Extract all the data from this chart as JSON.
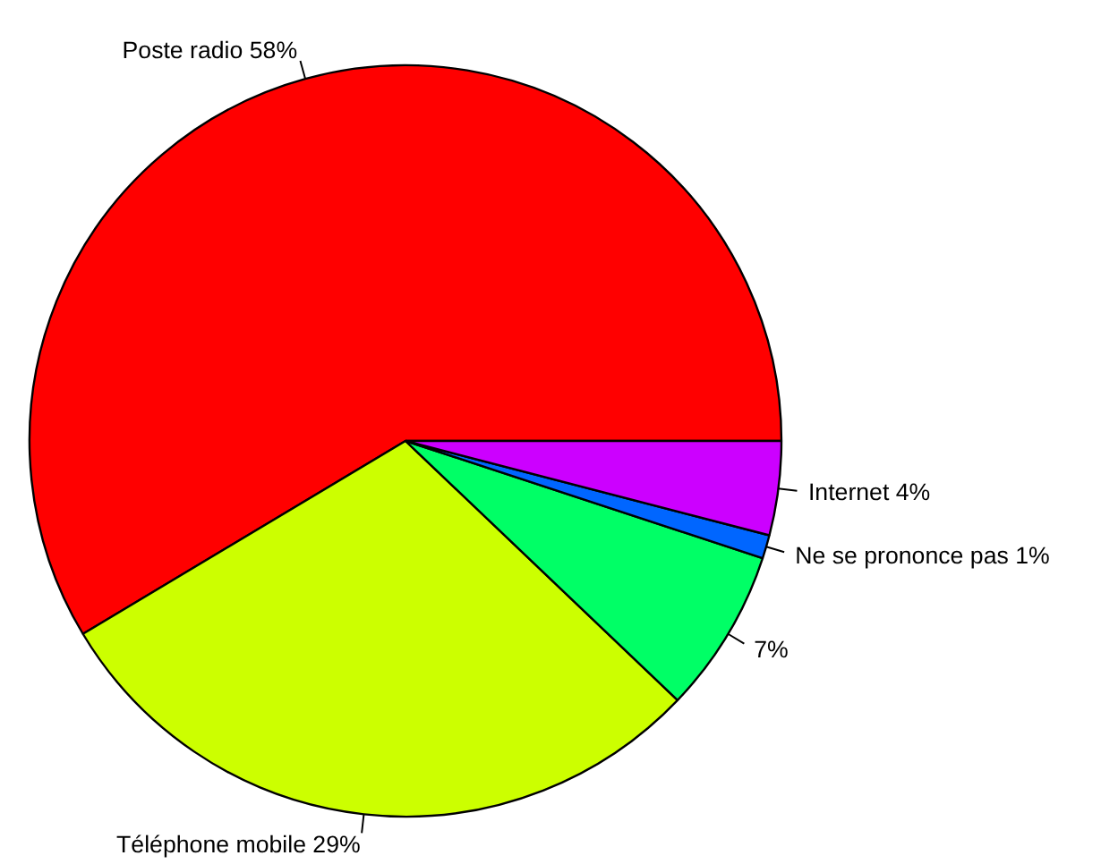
{
  "chart_data": {
    "type": "pie",
    "categories": [
      "Poste radio",
      "Téléphone mobile",
      null,
      "Ne se prononce pas",
      "Internet"
    ],
    "values": [
      58,
      29,
      7,
      1,
      4
    ],
    "value_labels": [
      "58%",
      "29%",
      "7%",
      "1%",
      "4%"
    ],
    "colors": [
      "#ff0000",
      "#ccff00",
      "#00ff66",
      "#0066ff",
      "#cc00ff"
    ]
  }
}
